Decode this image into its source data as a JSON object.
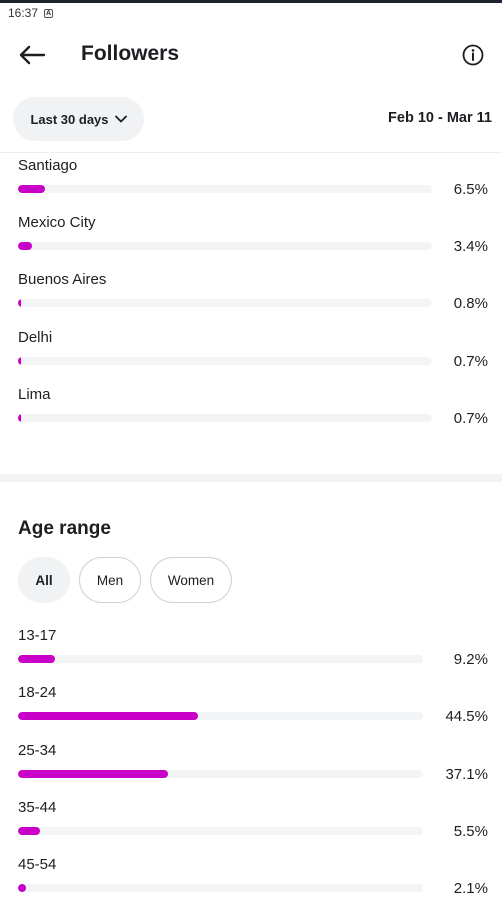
{
  "status_bar": {
    "time": "16:37",
    "icon": "notification-icon"
  },
  "header": {
    "title": "Followers",
    "back_icon": "arrow-left-icon",
    "info_icon": "info-icon"
  },
  "range": {
    "selected": "Last 30 days",
    "dates": "Feb 10 - Mar 11"
  },
  "cities": [
    {
      "name": "Santiago",
      "percent": "6.5%",
      "value": 6.5
    },
    {
      "name": "Mexico City",
      "percent": "3.4%",
      "value": 3.4
    },
    {
      "name": "Buenos Aires",
      "percent": "0.8%",
      "value": 0.8
    },
    {
      "name": "Delhi",
      "percent": "0.7%",
      "value": 0.7
    },
    {
      "name": "Lima",
      "percent": "0.7%",
      "value": 0.7
    }
  ],
  "age": {
    "title": "Age range",
    "filters": [
      {
        "label": "All",
        "active": true
      },
      {
        "label": "Men",
        "active": false
      },
      {
        "label": "Women",
        "active": false
      }
    ],
    "rows": [
      {
        "label": "13-17",
        "percent": "9.2%",
        "value": 9.2
      },
      {
        "label": "18-24",
        "percent": "44.5%",
        "value": 44.5
      },
      {
        "label": "25-34",
        "percent": "37.1%",
        "value": 37.1
      },
      {
        "label": "35-44",
        "percent": "5.5%",
        "value": 5.5
      },
      {
        "label": "45-54",
        "percent": "2.1%",
        "value": 2.1
      }
    ]
  },
  "colors": {
    "accent": "#c800c8",
    "track": "#f3f4f6"
  }
}
